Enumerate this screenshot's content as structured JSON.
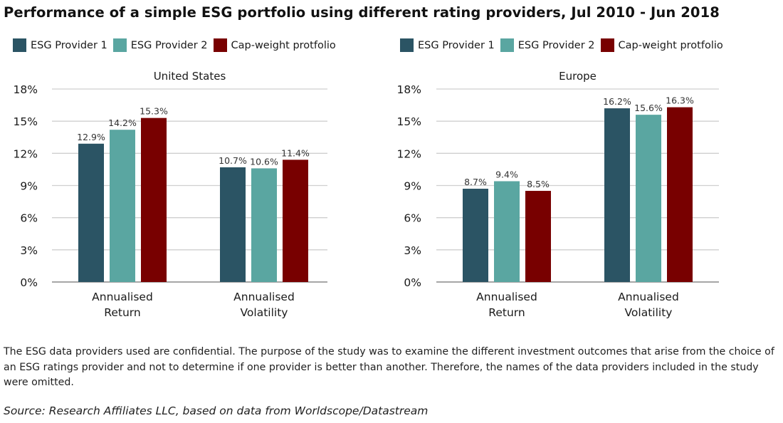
{
  "title": "Performance of a simple ESG portfolio using different rating providers, Jul 2010 - Jun 2018",
  "legend": [
    {
      "label": "ESG Provider 1",
      "color": "#2b5464"
    },
    {
      "label": "ESG Provider 2",
      "color": "#5aa6a1"
    },
    {
      "label": "Cap-weight protfolio",
      "color": "#780000"
    }
  ],
  "chart_data": [
    {
      "type": "bar",
      "title": "United States",
      "categories": [
        [
          "Annualised",
          "Return"
        ],
        [
          "Annualised",
          "Volatility"
        ]
      ],
      "series": [
        {
          "name": "ESG Provider 1",
          "color": "#2b5464",
          "values": [
            12.9,
            10.7
          ],
          "labels": [
            "12.9%",
            "10.7%"
          ]
        },
        {
          "name": "ESG Provider 2",
          "color": "#5aa6a1",
          "values": [
            14.2,
            10.6
          ],
          "labels": [
            "14.2%",
            "10.6%"
          ]
        },
        {
          "name": "Cap-weight protfolio",
          "color": "#780000",
          "values": [
            15.3,
            11.4
          ],
          "labels": [
            "15.3%",
            "11.4%"
          ]
        }
      ],
      "yticks": [
        0,
        3,
        6,
        9,
        12,
        15,
        18
      ],
      "ytick_labels": [
        "0%",
        "3%",
        "6%",
        "9%",
        "12%",
        "15%",
        "18%"
      ],
      "ylim": [
        0,
        18
      ],
      "xlabel": "",
      "ylabel": "",
      "grid": true,
      "legend_position": "top-left"
    },
    {
      "type": "bar",
      "title": "Europe",
      "categories": [
        [
          "Annualised",
          "Return"
        ],
        [
          "Annualised",
          "Volatility"
        ]
      ],
      "series": [
        {
          "name": "ESG Provider 1",
          "color": "#2b5464",
          "values": [
            8.7,
            16.2
          ],
          "labels": [
            "8.7%",
            "16.2%"
          ]
        },
        {
          "name": "ESG Provider 2",
          "color": "#5aa6a1",
          "values": [
            9.4,
            15.6
          ],
          "labels": [
            "9.4%",
            "15.6%"
          ]
        },
        {
          "name": "Cap-weight protfolio",
          "color": "#780000",
          "values": [
            8.5,
            16.3
          ],
          "labels": [
            "8.5%",
            "16.3%"
          ]
        }
      ],
      "yticks": [
        0,
        3,
        6,
        9,
        12,
        15,
        18
      ],
      "ytick_labels": [
        "0%",
        "3%",
        "6%",
        "9%",
        "12%",
        "15%",
        "18%"
      ],
      "ylim": [
        0,
        18
      ],
      "xlabel": "",
      "ylabel": "",
      "grid": true,
      "legend_position": "top-left"
    }
  ],
  "note": "The ESG data providers used are confidential. The purpose of the study was to examine the different investment outcomes that arise from the choice of an ESG ratings provider and not to determine if one provider is better than another. Therefore, the names of the data providers included in the study were omitted.",
  "source": "Source: Research Affiliates LLC, based on data from Worldscope/Datastream"
}
